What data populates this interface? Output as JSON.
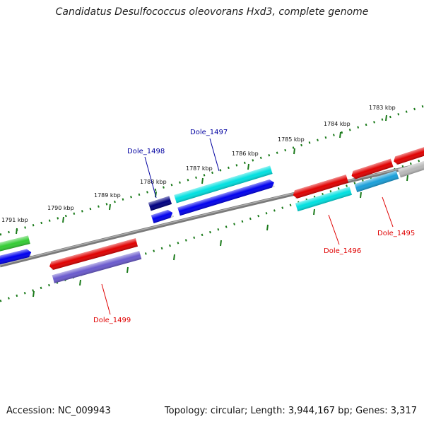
{
  "title": "Candidatus Desulfococcus oleovorans Hxd3, complete genome",
  "footer": {
    "accession": "Accession: NC_009943",
    "summary": "Topology: circular; Length: 3,944,167 bp; Genes: 3,317"
  },
  "ticks": [
    {
      "label": "1791 kbp"
    },
    {
      "label": "1790 kbp"
    },
    {
      "label": "1789 kbp"
    },
    {
      "label": "1788 kbp"
    },
    {
      "label": "1787 kbp"
    },
    {
      "label": "1786 kbp"
    },
    {
      "label": "1785 kbp"
    },
    {
      "label": "1784 kbp"
    },
    {
      "label": "1783 kbp"
    }
  ],
  "genes": [
    {
      "name": "Dole_1499",
      "strand": "reverse",
      "color": "#e00000"
    },
    {
      "name": "Dole_1498",
      "strand": "forward",
      "color": "#0000a0"
    },
    {
      "name": "Dole_1497",
      "strand": "forward",
      "color": "#0000a0"
    },
    {
      "name": "Dole_1496",
      "strand": "reverse",
      "color": "#e00000"
    },
    {
      "name": "Dole_1495",
      "strand": "reverse",
      "color": "#e00000"
    }
  ],
  "colors": {
    "backbone": "#808080",
    "ticks": "#1a7a1a",
    "cds_forward": "#e00000",
    "cds_reverse": "#00e0e0",
    "blue": "#0000ee",
    "navy": "#000080",
    "purple": "#6a5acd",
    "green": "#33cc33",
    "sky": "#1a9fd9",
    "grey": "#b8b8b8"
  }
}
